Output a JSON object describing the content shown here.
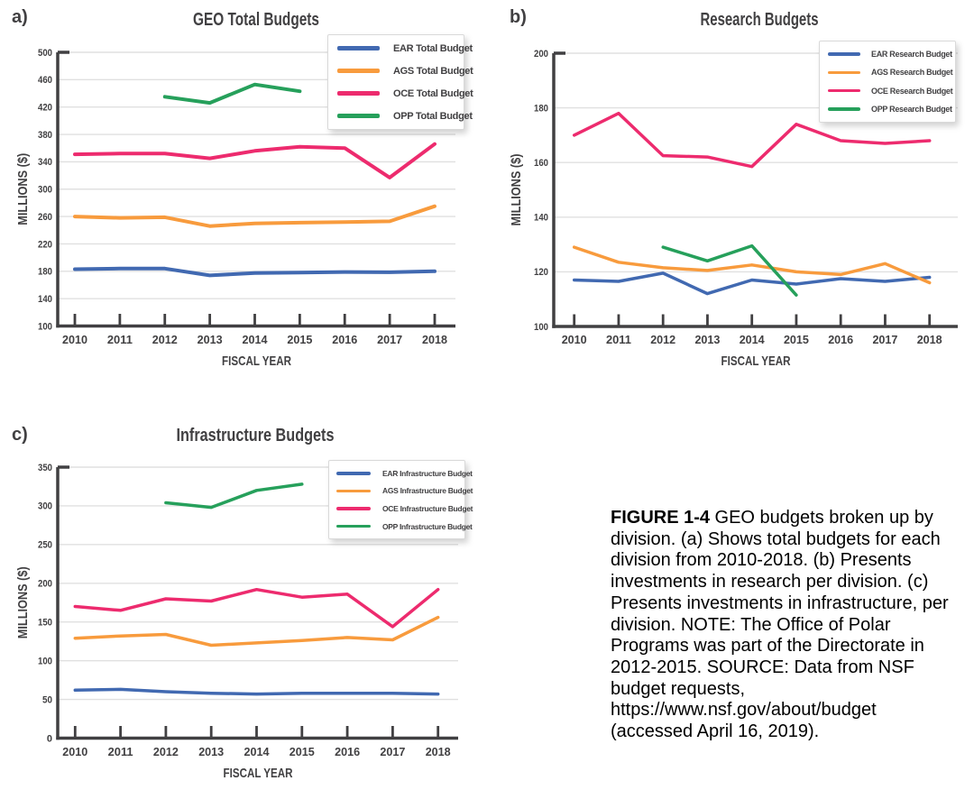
{
  "figure": {
    "background_color": "#FFFFFF",
    "text_color": "#414042",
    "grid_color": "#E0E0E0",
    "axis_color": "#414042"
  },
  "caption": {
    "title": "FIGURE 1-4",
    "lines": [
      "GEO budgets broken up by",
      "division. (a) Shows total budgets for each",
      "division from 2010-2018. (b) Presents",
      "investments in research per division. (c)",
      "Presents investments in infrastructure, per",
      "division. NOTE: The Office of Polar",
      "Programs was part of the Directorate in",
      "2012-2015. SOURCE: Data from NSF",
      "budget requests,",
      "https://www.nsf.gov/about/budget",
      "(accessed April 16, 2019)."
    ]
  },
  "chart_data": [
    {
      "type": "line",
      "panel_label": "a)",
      "title": "GEO Total Budgets",
      "xlabel": "FISCAL YEAR",
      "ylabel": "MILLIONS ($)",
      "x": [
        2010,
        2011,
        2012,
        2013,
        2014,
        2015,
        2016,
        2017,
        2018
      ],
      "ylim": [
        100,
        500
      ],
      "ytick_step": 40,
      "grid": true,
      "legend_position": "top-right",
      "series": [
        {
          "name": "EAR Total Budget",
          "color": "#4169B1",
          "x_start": 2010,
          "values": [
            183,
            184,
            184,
            174,
            177.5,
            178,
            179,
            178.5,
            180
          ]
        },
        {
          "name": "AGS Total Budget",
          "color": "#F89B3D",
          "x_start": 2010,
          "values": [
            260,
            258,
            259,
            246,
            250,
            251,
            252,
            253,
            275
          ]
        },
        {
          "name": "OCE Total Budget",
          "color": "#ED2B6E",
          "x_start": 2010,
          "values": [
            351,
            352,
            352,
            345,
            356,
            362,
            360,
            317,
            366
          ]
        },
        {
          "name": "OPP Total Budget",
          "color": "#26A05B",
          "x_start": 2012,
          "values": [
            435,
            426,
            453,
            443
          ]
        }
      ]
    },
    {
      "type": "line",
      "panel_label": "b)",
      "title": "Research Budgets",
      "xlabel": "FISCAL YEAR",
      "ylabel": "MILLIONS ($)",
      "x": [
        2010,
        2011,
        2012,
        2013,
        2014,
        2015,
        2016,
        2017,
        2018
      ],
      "ylim": [
        100,
        200
      ],
      "ytick_step": 20,
      "grid": true,
      "legend_position": "top-right",
      "series": [
        {
          "name": "EAR Research Budget",
          "color": "#4169B1",
          "x_start": 2010,
          "values": [
            117,
            116.5,
            119.5,
            112,
            117,
            115.5,
            117.5,
            116.5,
            118
          ]
        },
        {
          "name": "AGS Research Budget",
          "color": "#F89B3D",
          "x_start": 2010,
          "values": [
            129,
            123.5,
            121.5,
            120.5,
            122.5,
            120,
            119,
            123,
            116
          ]
        },
        {
          "name": "OCE Research Budget",
          "color": "#ED2B6E",
          "x_start": 2010,
          "values": [
            170,
            178,
            162.5,
            162,
            158.5,
            174,
            168,
            167,
            168
          ]
        },
        {
          "name": "OPP Research Budget",
          "color": "#26A05B",
          "x_start": 2012,
          "values": [
            129,
            124,
            129.5,
            111.5
          ]
        }
      ]
    },
    {
      "type": "line",
      "panel_label": "c)",
      "title": "Infrastructure Budgets",
      "xlabel": "FISCAL YEAR",
      "ylabel": "MILLIONS ($)",
      "x": [
        2010,
        2011,
        2012,
        2013,
        2014,
        2015,
        2016,
        2017,
        2018
      ],
      "ylim": [
        0,
        350
      ],
      "ytick_step": 50,
      "grid": true,
      "legend_position": "top-right",
      "series": [
        {
          "name": "EAR Infrastructure Budget",
          "color": "#4169B1",
          "x_start": 2010,
          "values": [
            62,
            63,
            60,
            58,
            57,
            58,
            58,
            58,
            57
          ]
        },
        {
          "name": "AGS Infrastructure Budget",
          "color": "#F89B3D",
          "x_start": 2010,
          "values": [
            129,
            132,
            134,
            120,
            123,
            126,
            130,
            127,
            156
          ]
        },
        {
          "name": "OCE Infrastructure Budget",
          "color": "#ED2B6E",
          "x_start": 2010,
          "values": [
            170,
            165,
            180,
            177,
            192,
            182,
            186,
            144,
            192
          ]
        },
        {
          "name": "OPP Infrastructure Budget",
          "color": "#26A05B",
          "x_start": 2012,
          "values": [
            304,
            298,
            320,
            328
          ]
        }
      ]
    }
  ]
}
